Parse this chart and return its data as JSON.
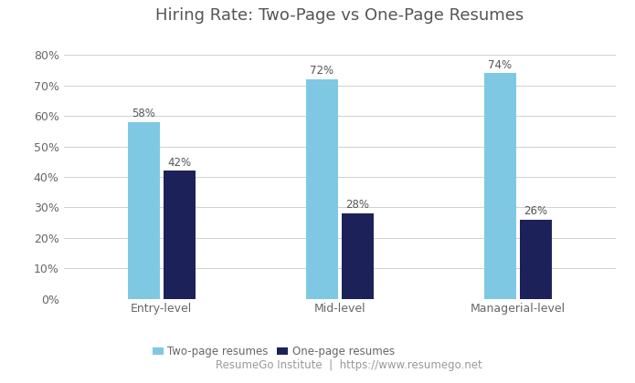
{
  "title": "Hiring Rate: Two-Page vs One-Page Resumes",
  "categories": [
    "Entry-level",
    "Mid-level",
    "Managerial-level"
  ],
  "two_page": [
    0.58,
    0.72,
    0.74
  ],
  "one_page": [
    0.42,
    0.28,
    0.26
  ],
  "two_page_color": "#7ec8e3",
  "one_page_color": "#1c2259",
  "two_page_label": "Two-page resumes",
  "one_page_label": "One-page resumes",
  "ylim": [
    0,
    0.88
  ],
  "yticks": [
    0,
    0.1,
    0.2,
    0.3,
    0.4,
    0.5,
    0.6,
    0.7,
    0.8
  ],
  "bar_width": 0.18,
  "title_fontsize": 13,
  "tick_fontsize": 9,
  "legend_fontsize": 8.5,
  "footer_text_left": "ResumeGo Institute",
  "footer_text_sep": "  |  ",
  "footer_text_right": "https://www.resumego.net",
  "background_color": "#ffffff",
  "grid_color": "#d0d0d0",
  "title_color": "#555555",
  "tick_color": "#666666",
  "bar_label_fontsize": 8.5,
  "bar_label_color": "#555555"
}
